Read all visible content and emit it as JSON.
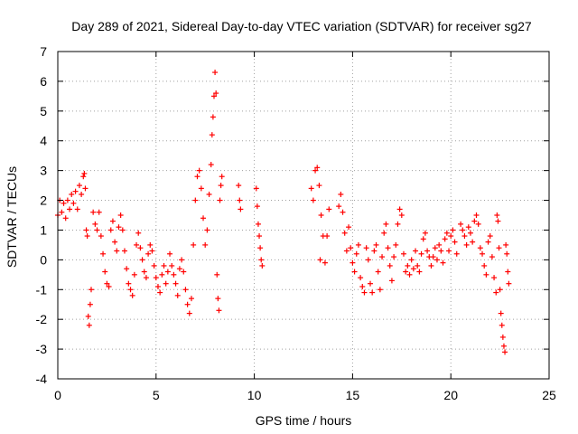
{
  "chart_data": {
    "type": "scatter",
    "title": "Day 289 of 2021, Sidereal Day-to-day VTEC variation (SDTVAR) for receiver sg27",
    "xlabel": "GPS time / hours",
    "ylabel": "SDTVAR / TECUs",
    "xlim": [
      0,
      25
    ],
    "ylim": [
      -4,
      7
    ],
    "xticks": [
      "0",
      "5",
      "10",
      "15",
      "20",
      "25"
    ],
    "yticks": [
      "-4",
      "-3",
      "-2",
      "-1",
      "0",
      "1",
      "2",
      "3",
      "4",
      "5",
      "6",
      "7"
    ],
    "grid": true,
    "marker": "+",
    "color": "#ff0000",
    "series": [
      {
        "name": "SDTVAR",
        "points": [
          [
            0.0,
            1.5
          ],
          [
            0.1,
            2.0
          ],
          [
            0.2,
            1.6
          ],
          [
            0.3,
            1.9
          ],
          [
            0.4,
            1.4
          ],
          [
            0.5,
            2.0
          ],
          [
            0.6,
            1.7
          ],
          [
            0.7,
            2.2
          ],
          [
            0.8,
            1.9
          ],
          [
            0.9,
            2.3
          ],
          [
            1.0,
            1.7
          ],
          [
            1.1,
            2.5
          ],
          [
            1.2,
            2.2
          ],
          [
            1.3,
            2.8
          ],
          [
            1.35,
            2.9
          ],
          [
            1.4,
            2.4
          ],
          [
            1.45,
            1.0
          ],
          [
            1.5,
            0.8
          ],
          [
            1.55,
            -1.9
          ],
          [
            1.6,
            -2.2
          ],
          [
            1.65,
            -1.5
          ],
          [
            1.7,
            -1.0
          ],
          [
            1.8,
            1.6
          ],
          [
            1.9,
            1.2
          ],
          [
            2.0,
            1.0
          ],
          [
            2.1,
            1.6
          ],
          [
            2.2,
            0.8
          ],
          [
            2.3,
            0.2
          ],
          [
            2.4,
            -0.4
          ],
          [
            2.5,
            -0.8
          ],
          [
            2.6,
            -0.9
          ],
          [
            2.7,
            1.0
          ],
          [
            2.8,
            1.3
          ],
          [
            2.9,
            0.6
          ],
          [
            3.0,
            0.3
          ],
          [
            3.1,
            1.1
          ],
          [
            3.2,
            1.5
          ],
          [
            3.3,
            1.0
          ],
          [
            3.4,
            0.3
          ],
          [
            3.5,
            -0.3
          ],
          [
            3.6,
            -0.8
          ],
          [
            3.7,
            -1.0
          ],
          [
            3.8,
            -1.2
          ],
          [
            3.9,
            -0.5
          ],
          [
            4.0,
            0.5
          ],
          [
            4.1,
            0.9
          ],
          [
            4.2,
            0.4
          ],
          [
            4.3,
            0.0
          ],
          [
            4.4,
            -0.4
          ],
          [
            4.5,
            -0.6
          ],
          [
            4.6,
            0.2
          ],
          [
            4.7,
            0.5
          ],
          [
            4.8,
            0.3
          ],
          [
            4.9,
            -0.2
          ],
          [
            5.0,
            -0.6
          ],
          [
            5.1,
            -0.9
          ],
          [
            5.2,
            -1.1
          ],
          [
            5.3,
            -0.5
          ],
          [
            5.4,
            -0.2
          ],
          [
            5.5,
            -0.8
          ],
          [
            5.6,
            -0.4
          ],
          [
            5.7,
            0.2
          ],
          [
            5.8,
            -0.2
          ],
          [
            5.9,
            -0.5
          ],
          [
            6.0,
            -0.8
          ],
          [
            6.1,
            -1.2
          ],
          [
            6.2,
            -0.3
          ],
          [
            6.3,
            0.0
          ],
          [
            6.4,
            -0.4
          ],
          [
            6.5,
            -1.0
          ],
          [
            6.6,
            -1.5
          ],
          [
            6.7,
            -1.8
          ],
          [
            6.8,
            -1.3
          ],
          [
            6.9,
            0.5
          ],
          [
            7.0,
            2.0
          ],
          [
            7.1,
            2.8
          ],
          [
            7.2,
            3.0
          ],
          [
            7.3,
            2.4
          ],
          [
            7.4,
            1.4
          ],
          [
            7.5,
            0.5
          ],
          [
            7.6,
            1.0
          ],
          [
            7.7,
            2.2
          ],
          [
            7.8,
            3.2
          ],
          [
            7.85,
            4.2
          ],
          [
            7.9,
            4.8
          ],
          [
            7.95,
            5.5
          ],
          [
            8.0,
            6.3
          ],
          [
            8.05,
            5.6
          ],
          [
            8.1,
            -0.5
          ],
          [
            8.15,
            -1.3
          ],
          [
            8.2,
            -1.7
          ],
          [
            8.25,
            2.0
          ],
          [
            8.3,
            2.5
          ],
          [
            8.35,
            2.8
          ],
          [
            9.2,
            2.5
          ],
          [
            9.25,
            2.0
          ],
          [
            9.3,
            1.7
          ],
          [
            10.1,
            2.4
          ],
          [
            10.15,
            1.8
          ],
          [
            10.2,
            1.2
          ],
          [
            10.25,
            0.8
          ],
          [
            10.3,
            0.4
          ],
          [
            10.35,
            0.0
          ],
          [
            10.4,
            -0.2
          ],
          [
            12.9,
            2.4
          ],
          [
            13.0,
            2.0
          ],
          [
            13.1,
            3.0
          ],
          [
            13.2,
            3.1
          ],
          [
            13.3,
            2.5
          ],
          [
            13.35,
            0.0
          ],
          [
            13.4,
            1.5
          ],
          [
            13.5,
            0.8
          ],
          [
            13.6,
            -0.1
          ],
          [
            13.7,
            0.8
          ],
          [
            13.8,
            1.7
          ],
          [
            14.3,
            1.8
          ],
          [
            14.4,
            2.2
          ],
          [
            14.5,
            1.6
          ],
          [
            14.6,
            0.9
          ],
          [
            14.7,
            0.3
          ],
          [
            14.8,
            1.1
          ],
          [
            14.9,
            0.4
          ],
          [
            15.0,
            -0.1
          ],
          [
            15.1,
            -0.4
          ],
          [
            15.2,
            0.2
          ],
          [
            15.3,
            0.5
          ],
          [
            15.4,
            -0.6
          ],
          [
            15.5,
            -0.9
          ],
          [
            15.6,
            -1.1
          ],
          [
            15.7,
            0.4
          ],
          [
            15.8,
            0.0
          ],
          [
            15.9,
            -0.8
          ],
          [
            16.0,
            -1.1
          ],
          [
            16.1,
            0.3
          ],
          [
            16.2,
            0.5
          ],
          [
            16.3,
            -0.4
          ],
          [
            16.4,
            -1.0
          ],
          [
            16.5,
            0.1
          ],
          [
            16.6,
            0.9
          ],
          [
            16.7,
            1.2
          ],
          [
            16.8,
            0.4
          ],
          [
            16.9,
            -0.2
          ],
          [
            17.0,
            -0.7
          ],
          [
            17.1,
            0.1
          ],
          [
            17.2,
            0.5
          ],
          [
            17.3,
            1.2
          ],
          [
            17.4,
            1.7
          ],
          [
            17.5,
            1.5
          ],
          [
            17.6,
            0.2
          ],
          [
            17.7,
            -0.4
          ],
          [
            17.8,
            -0.2
          ],
          [
            17.9,
            -0.5
          ],
          [
            18.0,
            0.0
          ],
          [
            18.1,
            -0.3
          ],
          [
            18.2,
            0.3
          ],
          [
            18.3,
            -0.2
          ],
          [
            18.4,
            -0.4
          ],
          [
            18.5,
            0.2
          ],
          [
            18.6,
            0.7
          ],
          [
            18.7,
            0.9
          ],
          [
            18.8,
            0.3
          ],
          [
            18.9,
            0.1
          ],
          [
            19.0,
            -0.2
          ],
          [
            19.1,
            0.1
          ],
          [
            19.2,
            0.4
          ],
          [
            19.3,
            0.0
          ],
          [
            19.4,
            0.5
          ],
          [
            19.5,
            0.3
          ],
          [
            19.6,
            -0.1
          ],
          [
            19.7,
            0.7
          ],
          [
            19.8,
            0.9
          ],
          [
            19.9,
            0.3
          ],
          [
            20.0,
            0.8
          ],
          [
            20.1,
            1.0
          ],
          [
            20.2,
            0.6
          ],
          [
            20.3,
            0.2
          ],
          [
            20.5,
            1.2
          ],
          [
            20.6,
            1.0
          ],
          [
            20.7,
            0.8
          ],
          [
            20.8,
            0.5
          ],
          [
            20.9,
            1.1
          ],
          [
            21.0,
            0.9
          ],
          [
            21.1,
            0.6
          ],
          [
            21.2,
            1.3
          ],
          [
            21.3,
            1.5
          ],
          [
            21.4,
            1.2
          ],
          [
            21.5,
            0.4
          ],
          [
            21.6,
            0.2
          ],
          [
            21.7,
            -0.2
          ],
          [
            21.8,
            -0.5
          ],
          [
            21.9,
            0.6
          ],
          [
            22.0,
            0.8
          ],
          [
            22.1,
            0.1
          ],
          [
            22.2,
            -0.6
          ],
          [
            22.3,
            -1.1
          ],
          [
            22.35,
            1.5
          ],
          [
            22.4,
            1.3
          ],
          [
            22.45,
            0.4
          ],
          [
            22.5,
            -1.0
          ],
          [
            22.55,
            -1.8
          ],
          [
            22.6,
            -2.2
          ],
          [
            22.65,
            -2.6
          ],
          [
            22.7,
            -2.9
          ],
          [
            22.75,
            -3.1
          ],
          [
            22.8,
            0.5
          ],
          [
            22.85,
            0.2
          ],
          [
            22.9,
            -0.4
          ],
          [
            22.95,
            -0.8
          ]
        ]
      }
    ]
  }
}
